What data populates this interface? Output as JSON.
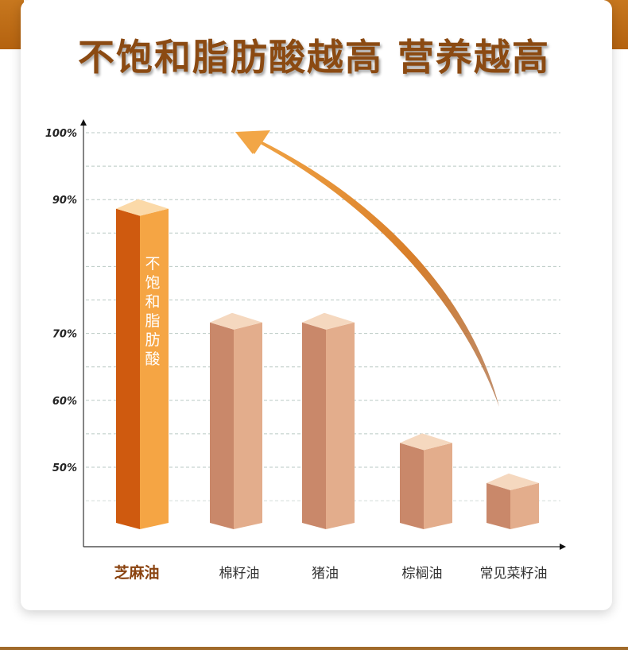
{
  "headline": "不饱和脂肪酸越高 营养越高",
  "colors": {
    "highlight_front": "#f5a544",
    "highlight_side": "#cf5a0f",
    "highlight_top": "#fbd9a8",
    "bar_front": "#e3ad8c",
    "bar_side": "#c9886a",
    "bar_top": "#f5d8bf",
    "arrow_head": "#f2a646",
    "arrow_tail": "#9a4a14"
  },
  "chart_data": {
    "type": "bar",
    "categories": [
      "芝麻油",
      "棉籽油",
      "猪油",
      "棕榈油",
      "常见菜籽油"
    ],
    "values": [
      89,
      72,
      72,
      54,
      48
    ],
    "highlight_index": 0,
    "highlight_bar_label": "不饱和脂肪酸",
    "yticks": [
      "100%",
      "90%",
      "70%",
      "60%",
      "50%"
    ],
    "ytick_values": [
      100,
      90,
      70,
      60,
      50
    ],
    "ylim": [
      41,
      102
    ],
    "grid": true,
    "annotation": "upward-curved-arrow"
  }
}
